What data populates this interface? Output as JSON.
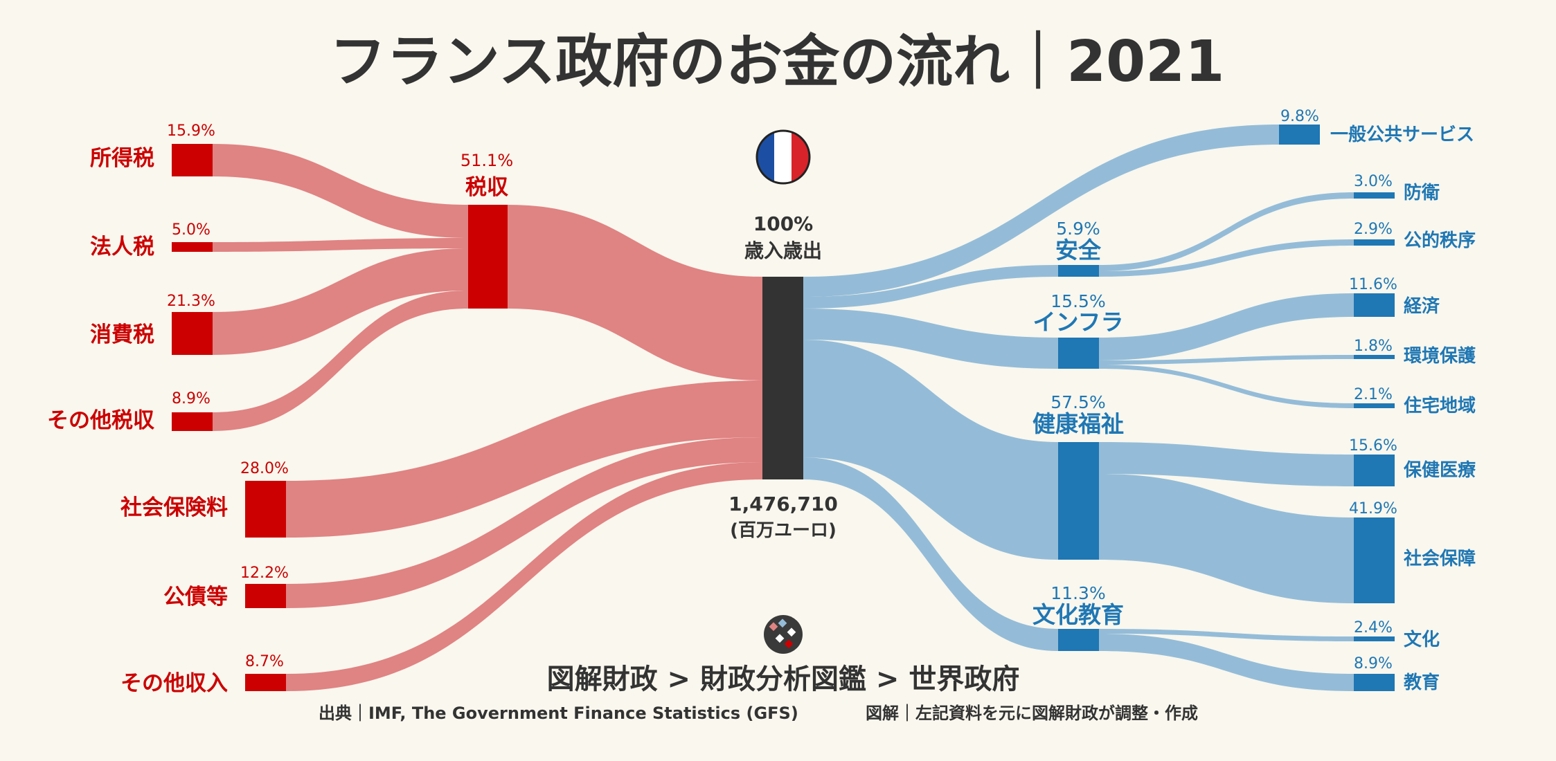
{
  "header": {
    "title": "フランス政府のお金の流れ｜2021"
  },
  "center": {
    "pct": "100%",
    "label": "歳入歳出",
    "amount": "1,476,710",
    "unit": "(百万ユーロ)"
  },
  "tax_group": {
    "label": "税収",
    "pct": "51.1%"
  },
  "revenue": [
    {
      "label": "所得税",
      "pct": "15.9%"
    },
    {
      "label": "法人税",
      "pct": "5.0%"
    },
    {
      "label": "消費税",
      "pct": "21.3%"
    },
    {
      "label": "その他税収",
      "pct": "8.9%"
    },
    {
      "label": "社会保険料",
      "pct": "28.0%"
    },
    {
      "label": "公債等",
      "pct": "12.2%"
    },
    {
      "label": "その他収入",
      "pct": "8.7%"
    }
  ],
  "expense_categories": [
    {
      "label": "安全",
      "pct": "5.9%"
    },
    {
      "label": "インフラ",
      "pct": "15.5%"
    },
    {
      "label": "健康福祉",
      "pct": "57.5%"
    },
    {
      "label": "文化教育",
      "pct": "11.3%"
    }
  ],
  "expenses": [
    {
      "label": "一般公共サービス",
      "pct": "9.8%"
    },
    {
      "label": "防衛",
      "pct": "3.0%"
    },
    {
      "label": "公的秩序",
      "pct": "2.9%"
    },
    {
      "label": "経済",
      "pct": "11.6%"
    },
    {
      "label": "環境保護",
      "pct": "1.8%"
    },
    {
      "label": "住宅地域",
      "pct": "2.1%"
    },
    {
      "label": "保健医療",
      "pct": "15.6%"
    },
    {
      "label": "社会保障",
      "pct": "41.9%"
    },
    {
      "label": "文化",
      "pct": "2.4%"
    },
    {
      "label": "教育",
      "pct": "8.9%"
    }
  ],
  "footer": {
    "breadcrumb": "図解財政 > 財政分析図鑑 > 世界政府",
    "source": "出典｜IMF, The Government Finance Statistics (GFS)",
    "credit": "図解｜左記資料を元に図解財政が調整・作成"
  },
  "colors": {
    "revenue_node": "#cc0000",
    "revenue_flow": "#e08383",
    "center_node": "#333333",
    "expense_node": "#1f77b4",
    "expense_flow": "#94bcd8",
    "background": "#f9f7ee",
    "flag_blue": "#1c4fa3",
    "flag_red": "#d8232a"
  },
  "icons": {
    "flag": "france-flag-icon",
    "logo": "zukai-zaisei-logo-icon"
  }
}
